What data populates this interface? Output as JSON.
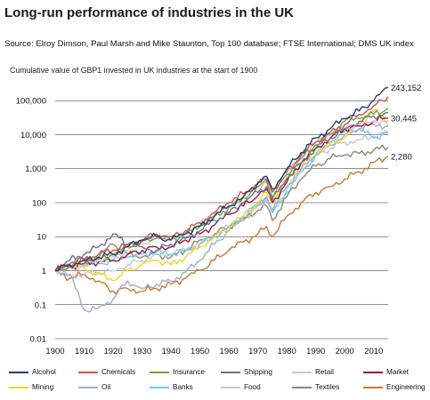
{
  "title": "Long-run performance of industries in the UK",
  "source": "Source: Elroy Dimson, Paul Marsh and Mike Staunton, Top 100 database; FTSE International; DMS UK index",
  "subtitle": "Cumulative value of GBP1 invested in UK industries at the start of 1900",
  "chart_data": {
    "type": "line",
    "title": "Long-run performance of industries in the UK",
    "ylabel": "Cumulative value of GBP1 invested in UK industries at the start of 1900",
    "xlabel": "",
    "y_scale": "log",
    "ylim": [
      0.01,
      300000
    ],
    "xlim": [
      1900,
      2015
    ],
    "grid": "horizontal",
    "legend_position": "bottom",
    "x_ticks": [
      1900,
      1910,
      1920,
      1930,
      1940,
      1950,
      1960,
      1970,
      1980,
      1990,
      2000,
      2010
    ],
    "y_ticks": [
      {
        "value": 0.01,
        "label": "0.01"
      },
      {
        "value": 0.1,
        "label": "0.1"
      },
      {
        "value": 1,
        "label": "1"
      },
      {
        "value": 10,
        "label": "10"
      },
      {
        "value": 100,
        "label": "100"
      },
      {
        "value": 1000,
        "label": "1,000"
      },
      {
        "value": 10000,
        "label": "10,000"
      },
      {
        "value": 100000,
        "label": "100,000"
      }
    ],
    "end_labels": [
      {
        "value": 243152,
        "label": "243,152"
      },
      {
        "value": 30445,
        "label": "30,445"
      },
      {
        "value": 2280,
        "label": "2,280"
      }
    ],
    "x": [
      1900,
      1905,
      1910,
      1915,
      1920,
      1925,
      1930,
      1935,
      1940,
      1945,
      1950,
      1955,
      1960,
      1965,
      1970,
      1973,
      1975,
      1980,
      1985,
      1990,
      1995,
      2000,
      2005,
      2010,
      2015
    ],
    "series": [
      {
        "name": "Alcohol",
        "color": "#1f3f7a",
        "values": [
          1,
          1.5,
          2,
          2.5,
          3,
          5,
          8,
          10,
          8,
          12,
          20,
          40,
          80,
          150,
          400,
          600,
          250,
          1000,
          3000,
          8000,
          15000,
          30000,
          50000,
          100000,
          243152
        ]
      },
      {
        "name": "Chemicals",
        "color": "#d05050",
        "values": [
          1,
          1.6,
          2.2,
          3,
          4,
          6,
          8,
          12,
          10,
          15,
          25,
          50,
          100,
          180,
          350,
          500,
          200,
          800,
          2500,
          6000,
          12000,
          20000,
          40000,
          70000,
          130000
        ]
      },
      {
        "name": "Insurance",
        "color": "#6aaa3a",
        "values": [
          1,
          1.4,
          2,
          2.2,
          3,
          5,
          7,
          9,
          8,
          12,
          20,
          40,
          70,
          140,
          300,
          450,
          150,
          700,
          2000,
          5000,
          10000,
          25000,
          30000,
          40000,
          60000
        ]
      },
      {
        "name": "Shipping",
        "color": "#6e6d9a",
        "values": [
          1,
          2,
          3,
          5,
          12,
          6,
          5,
          4,
          6,
          9,
          15,
          30,
          50,
          100,
          200,
          300,
          120,
          500,
          1500,
          4000,
          8000,
          15000,
          25000,
          35000,
          45000
        ]
      },
      {
        "name": "Retail",
        "color": "#e8b8c8",
        "values": [
          1,
          1.2,
          1.5,
          2,
          2.5,
          4,
          6,
          10,
          8,
          12,
          25,
          45,
          80,
          150,
          300,
          400,
          150,
          600,
          2500,
          6000,
          10000,
          15000,
          20000,
          25000,
          20000
        ]
      },
      {
        "name": "Market",
        "color": "#9a1a35",
        "values": [
          1,
          1.3,
          1.6,
          1.8,
          2,
          3,
          4,
          5,
          5,
          8,
          12,
          22,
          45,
          80,
          160,
          250,
          100,
          400,
          1500,
          4000,
          8000,
          15000,
          18000,
          25000,
          30445
        ]
      },
      {
        "name": "Mining",
        "color": "#f0d820",
        "values": [
          1,
          1.5,
          1.2,
          0.8,
          0.5,
          1,
          1.5,
          2,
          1.5,
          2.5,
          5,
          10,
          20,
          40,
          100,
          200,
          100,
          500,
          1200,
          3000,
          5000,
          8000,
          20000,
          50000,
          25000
        ]
      },
      {
        "name": "Oil",
        "color": "#9ab0cc",
        "values": [
          1,
          0.8,
          0.07,
          0.08,
          0.15,
          0.5,
          0.3,
          0.4,
          0.5,
          0.9,
          2,
          6,
          15,
          30,
          80,
          150,
          60,
          300,
          1000,
          2500,
          5000,
          10000,
          15000,
          20000,
          18000
        ]
      },
      {
        "name": "Banks",
        "color": "#70c8e8",
        "values": [
          1,
          1.2,
          1.4,
          1.6,
          2,
          2.5,
          3,
          3.5,
          3,
          4,
          6,
          10,
          20,
          40,
          90,
          150,
          50,
          200,
          800,
          2500,
          6000,
          12000,
          15000,
          8000,
          12000
        ]
      },
      {
        "name": "Food",
        "color": "#c4c4e2",
        "values": [
          1,
          0.7,
          0.8,
          0.9,
          1,
          1.5,
          2,
          3,
          3,
          4,
          6,
          10,
          20,
          40,
          80,
          120,
          50,
          250,
          1000,
          2500,
          4000,
          6000,
          7000,
          9000,
          11000
        ]
      },
      {
        "name": "Textiles",
        "color": "#908572",
        "values": [
          1,
          1.5,
          2,
          2.5,
          6,
          3,
          2.5,
          3,
          2.5,
          4,
          8,
          12,
          20,
          35,
          60,
          80,
          30,
          150,
          500,
          1200,
          2000,
          2500,
          2800,
          3500,
          4200
        ]
      },
      {
        "name": "Engineering",
        "color": "#c87830",
        "values": [
          1,
          0.6,
          0.8,
          0.5,
          0.25,
          0.3,
          0.25,
          0.3,
          0.4,
          0.6,
          1,
          2,
          4,
          7,
          12,
          20,
          10,
          40,
          100,
          200,
          300,
          500,
          800,
          1500,
          2280
        ]
      }
    ]
  }
}
